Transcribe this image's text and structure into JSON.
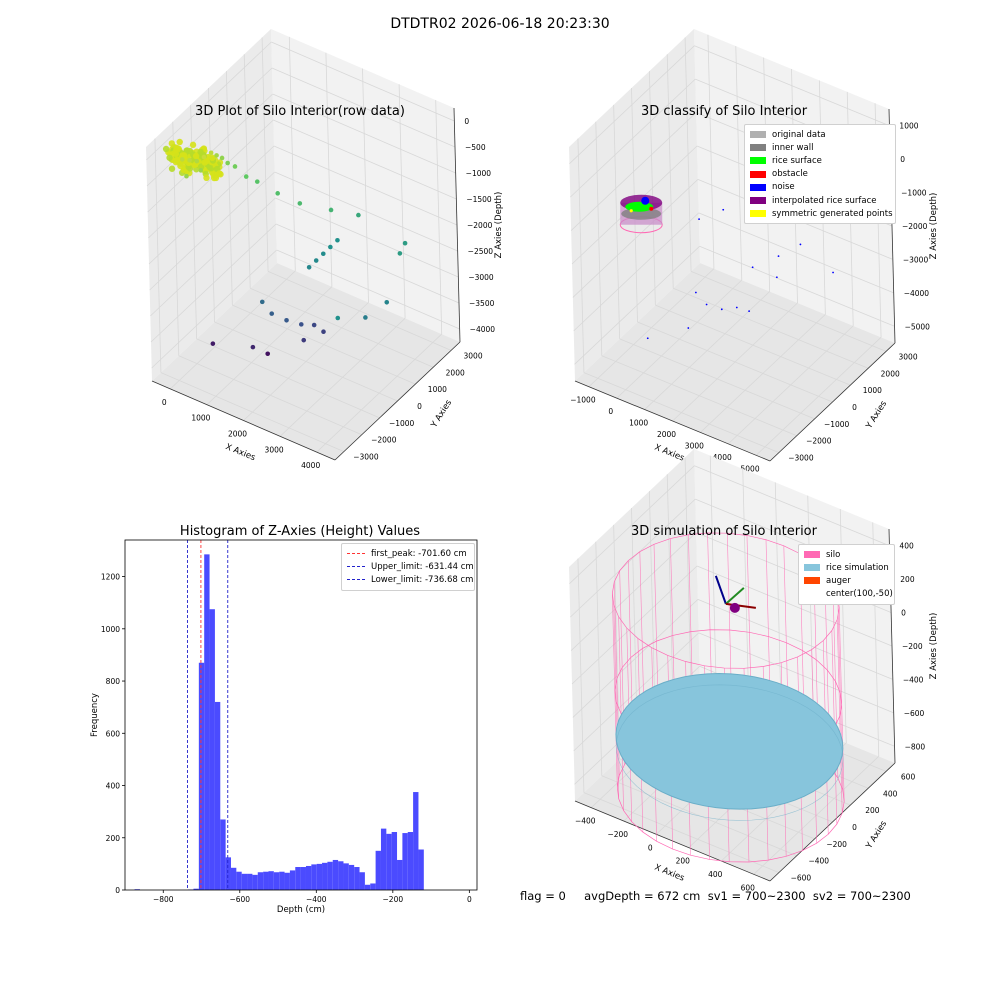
{
  "suptitle": "DTDTR02 2026-06-18 20:23:30",
  "footer": "flag = 0     avgDepth = 672 cm  sv1 = 700~2300  sv2 = 700~2300",
  "colors": {
    "hist_bar": "#4b4bff",
    "peak_line": "#ff3333",
    "limit_line": "#2222cc",
    "silo": "#ff69b4",
    "rice": "#87c5dc",
    "auger": "#ff4500",
    "pane": "#f2f2f2",
    "grid": "#d8d8d8"
  },
  "chart_data": [
    {
      "type": "scatter3d",
      "title": "3D Plot of Silo Interior(row data)",
      "xlabel": "X Axies",
      "ylabel": "Y Axies",
      "zlabel": "Z Axies (Depth)",
      "x_ticks": [
        "0",
        "1000",
        "2000",
        "3000",
        "4000"
      ],
      "y_ticks": [
        "−3000",
        "−2000",
        "−1000",
        "0",
        "1000",
        "2000",
        "3000"
      ],
      "z_ticks": [
        "0",
        "−500",
        "−1000",
        "−1500",
        "−2000",
        "−2500",
        "−3000",
        "−3500",
        "−4000"
      ],
      "colormap": "viridis",
      "points": [
        {
          "x": -300,
          "y": -2200,
          "z": -300,
          "c": 0.9
        },
        {
          "x": -200,
          "y": -2000,
          "z": -350,
          "c": 0.9
        },
        {
          "x": -100,
          "y": -1800,
          "z": -400,
          "c": 0.88
        },
        {
          "x": 0,
          "y": -1600,
          "z": -350,
          "c": 0.92
        },
        {
          "x": 100,
          "y": -1400,
          "z": -300,
          "c": 0.9
        },
        {
          "x": 150,
          "y": -1200,
          "z": -400,
          "c": 0.86
        },
        {
          "x": 50,
          "y": -1900,
          "z": -500,
          "c": 0.85
        },
        {
          "x": -150,
          "y": -2300,
          "z": -550,
          "c": 0.84
        },
        {
          "x": 200,
          "y": -1000,
          "z": -500,
          "c": 0.83
        },
        {
          "x": 300,
          "y": -900,
          "z": -600,
          "c": 0.8
        },
        {
          "x": 400,
          "y": -700,
          "z": -700,
          "c": 0.78
        },
        {
          "x": 600,
          "y": -500,
          "z": -900,
          "c": 0.75
        },
        {
          "x": 800,
          "y": -300,
          "z": -1000,
          "c": 0.72
        },
        {
          "x": 1200,
          "y": 0,
          "z": -1200,
          "c": 0.7
        },
        {
          "x": 1600,
          "y": 400,
          "z": -1400,
          "c": 0.68
        },
        {
          "x": 2200,
          "y": 900,
          "z": -1500,
          "c": 0.65
        },
        {
          "x": 2600,
          "y": 1600,
          "z": -1700,
          "c": 0.6
        },
        {
          "x": 2400,
          "y": 800,
          "z": -2000,
          "c": 0.5
        },
        {
          "x": 2300,
          "y": 600,
          "z": -2100,
          "c": 0.5
        },
        {
          "x": 2200,
          "y": 400,
          "z": -2200,
          "c": 0.48
        },
        {
          "x": 2100,
          "y": 200,
          "z": -2300,
          "c": 0.47
        },
        {
          "x": 2000,
          "y": 0,
          "z": -2400,
          "c": 0.46
        },
        {
          "x": 3600,
          "y": 1800,
          "z": -2200,
          "c": 0.55
        },
        {
          "x": 3700,
          "y": 1900,
          "z": -2000,
          "c": 0.55
        },
        {
          "x": 3500,
          "y": 1200,
          "z": -3000,
          "c": 0.45
        },
        {
          "x": 3200,
          "y": 600,
          "z": -3200,
          "c": 0.42
        },
        {
          "x": 900,
          "y": -400,
          "z": -3300,
          "c": 0.35
        },
        {
          "x": 1100,
          "y": -300,
          "z": -3500,
          "c": 0.3
        },
        {
          "x": 1400,
          "y": -100,
          "z": -3600,
          "c": 0.28
        },
        {
          "x": 1700,
          "y": 100,
          "z": -3650,
          "c": 0.25
        },
        {
          "x": 2000,
          "y": 200,
          "z": -3600,
          "c": 0.22
        },
        {
          "x": 2200,
          "y": 300,
          "z": -3700,
          "c": 0.2
        },
        {
          "x": 1900,
          "y": -200,
          "z": -3800,
          "c": 0.18
        },
        {
          "x": 1000,
          "y": -1200,
          "z": -3900,
          "c": 0.12
        },
        {
          "x": 400,
          "y": -2200,
          "z": -3700,
          "c": 0.08
        },
        {
          "x": 1300,
          "y": -1000,
          "z": -4000,
          "c": 0.05
        },
        {
          "x": 2500,
          "y": 500,
          "z": -3400,
          "c": 0.5
        }
      ],
      "dense_cluster": {
        "cx": -200,
        "cy": -1800,
        "cz": -300,
        "rx": 700,
        "ry": 600,
        "rz": 250,
        "color": "#d6e21a"
      }
    },
    {
      "type": "scatter3d",
      "title": "3D classify of Silo Interior",
      "xlabel": "X Axies",
      "ylabel": "Y Axies",
      "zlabel": "Z Axies (Depth)",
      "x_ticks": [
        "−1000",
        "0",
        "1000",
        "2000",
        "3000",
        "4000",
        "5000"
      ],
      "y_ticks": [
        "−3000",
        "−2000",
        "−1000",
        "0",
        "1000",
        "2000",
        "3000"
      ],
      "z_ticks": [
        "1000",
        "0",
        "−1000",
        "−2000",
        "−3000",
        "−4000",
        "−5000"
      ],
      "legend": [
        {
          "label": "original data",
          "color": "#b0b0b0"
        },
        {
          "label": "inner wall",
          "color": "#808080"
        },
        {
          "label": "rice surface",
          "color": "#00ff00"
        },
        {
          "label": "obstacle",
          "color": "#ff0000"
        },
        {
          "label": "noise",
          "color": "#0000ff"
        },
        {
          "label": "interpolated rice surface",
          "color": "#800080"
        },
        {
          "label": "symmetric generated points",
          "color": "#ffff00"
        }
      ],
      "noise_points": [
        {
          "x": 1800,
          "y": -200,
          "z": -900
        },
        {
          "x": 2200,
          "y": 600,
          "z": -1100
        },
        {
          "x": 2600,
          "y": 1400,
          "z": -1300
        },
        {
          "x": 3200,
          "y": 1800,
          "z": -1600
        },
        {
          "x": 3600,
          "y": 2200,
          "z": -1400
        },
        {
          "x": 3400,
          "y": 1500,
          "z": -2200
        },
        {
          "x": 3000,
          "y": 900,
          "z": -2400
        },
        {
          "x": 2400,
          "y": 400,
          "z": -2700
        },
        {
          "x": 1200,
          "y": -600,
          "z": -1200
        },
        {
          "x": 900,
          "y": -400,
          "z": -3600
        },
        {
          "x": 1200,
          "y": -300,
          "z": -3900
        },
        {
          "x": 1600,
          "y": -100,
          "z": -4000
        },
        {
          "x": 2000,
          "y": 100,
          "z": -3900
        },
        {
          "x": 2300,
          "y": 300,
          "z": -4000
        },
        {
          "x": 300,
          "y": -2200,
          "z": -4300
        },
        {
          "x": 1100,
          "y": -1200,
          "z": -4200
        },
        {
          "x": 4200,
          "y": 2000,
          "z": -3000
        },
        {
          "x": 2800,
          "y": 1100,
          "z": -3200
        }
      ],
      "silo_cluster": {
        "cx": 0,
        "cy": -1900,
        "cz": -800,
        "r": 600
      }
    },
    {
      "type": "bar",
      "title": "Histogram of Z-Axies (Height) Values",
      "xlabel": "Depth (cm)",
      "ylabel": "Frequency",
      "xlim": [
        -900,
        20
      ],
      "ylim": [
        0,
        1340
      ],
      "x_ticks": [
        -800,
        -600,
        -400,
        -200,
        0
      ],
      "x_tick_labels": [
        "−800",
        "−600",
        "−400",
        "−200",
        "0"
      ],
      "y_ticks": [
        0,
        200,
        400,
        600,
        800,
        1000,
        1200
      ],
      "bin_width": 14,
      "bin_starts": [
        -875,
        -861,
        -847,
        -833,
        -819,
        -805,
        -791,
        -777,
        -763,
        -749,
        -735,
        -721,
        -707,
        -693,
        -679,
        -665,
        -651,
        -637,
        -623,
        -609,
        -595,
        -581,
        -567,
        -553,
        -539,
        -525,
        -511,
        -497,
        -483,
        -469,
        -455,
        -441,
        -427,
        -413,
        -399,
        -385,
        -371,
        -357,
        -343,
        -329,
        -315,
        -301,
        -287,
        -273,
        -259,
        -245,
        -231,
        -217,
        -203,
        -189,
        -175,
        -161,
        -147,
        -133,
        -119,
        -105,
        -91,
        -77,
        -63,
        -49,
        -35,
        -21,
        -7
      ],
      "values": [
        3,
        0,
        0,
        0,
        0,
        0,
        0,
        0,
        0,
        0,
        2,
        5,
        870,
        1285,
        1075,
        720,
        270,
        125,
        85,
        70,
        62,
        62,
        58,
        68,
        70,
        72,
        68,
        70,
        66,
        75,
        88,
        88,
        92,
        98,
        100,
        104,
        108,
        115,
        110,
        102,
        96,
        88,
        68,
        20,
        25,
        150,
        235,
        215,
        222,
        115,
        218,
        222,
        375,
        155,
        0,
        0,
        0,
        0,
        0,
        0,
        0,
        0,
        0
      ],
      "vlines": [
        {
          "label": "first_peak: -701.60 cm",
          "x": -701.6,
          "style": "peak"
        },
        {
          "label": "Upper_limit: -631.44 cm",
          "x": -631.44,
          "style": "limit"
        },
        {
          "label": "Lower_limit: -736.68 cm",
          "x": -736.68,
          "style": "limit"
        }
      ],
      "legend": "top-right"
    },
    {
      "type": "surface3d",
      "title": "3D simulation of Silo Interior",
      "xlabel": "X Axies",
      "ylabel": "Y Axies",
      "zlabel": "Z Axies (Depth)",
      "x_ticks": [
        "−400",
        "−200",
        "0",
        "200",
        "400",
        "600"
      ],
      "y_ticks": [
        "−600",
        "−400",
        "−200",
        "0",
        "200",
        "400",
        "600"
      ],
      "z_ticks": [
        "400",
        "200",
        "0",
        "−200",
        "−400",
        "−600",
        "−800"
      ],
      "legend": [
        {
          "label": "silo",
          "color": "#ff69b4"
        },
        {
          "label": "rice simulation",
          "color": "#87c5dc"
        },
        {
          "label": "auger",
          "color": "#ff4500"
        },
        {
          "label": "center(100,-50)",
          "color": ""
        }
      ],
      "silo": {
        "radius": 650,
        "top": 200,
        "bottom": -1000,
        "cx": 100,
        "cy": -50
      },
      "rice_depth": -672
    }
  ]
}
